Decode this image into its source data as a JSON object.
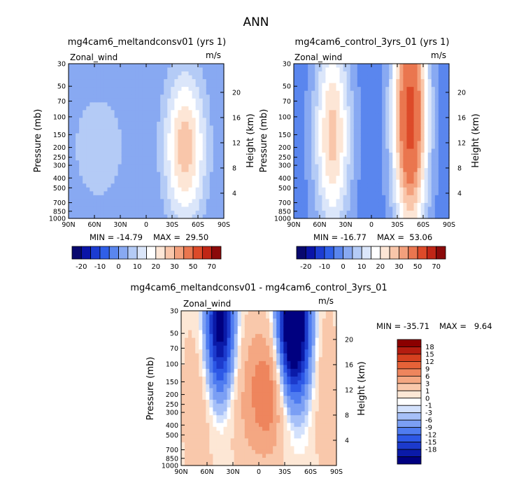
{
  "figure_title": "ANN",
  "colors": {
    "top_scale": [
      "#08086e",
      "#0a14a8",
      "#1c3cd2",
      "#2f5fe8",
      "#5a86ee",
      "#88a9f2",
      "#b4cbf6",
      "#dbe6fa",
      "#ffffff",
      "#fde6d6",
      "#f9c6aa",
      "#f3a07c",
      "#ea764f",
      "#dd4a29",
      "#c02616",
      "#8b0a0a"
    ],
    "diff_scale": [
      "#000080",
      "#0a1aa8",
      "#1c3acc",
      "#2d58e6",
      "#4f7cf0",
      "#7b9ff4",
      "#a6c0f8",
      "#d3e1fc",
      "#ffffff",
      "#fde7d5",
      "#f9c8ab",
      "#f4a782",
      "#ee855d",
      "#e66238",
      "#d5401f",
      "#b41c10",
      "#8b0000"
    ]
  },
  "chart_data": [
    {
      "type": "contour",
      "title": "mg4cam6_meltandconsv01 (yrs 1)",
      "left_label": "Zonal_wind",
      "right_label": "m/s",
      "ylabel": "Pressure (mb)",
      "ylabel_right": "Height (km)",
      "x_ticks": [
        "90N",
        "60N",
        "30N",
        "0",
        "30S",
        "60S",
        "90S"
      ],
      "x_values": [
        90,
        60,
        30,
        0,
        -30,
        -60,
        -90
      ],
      "y_ticks": [
        "30",
        "50",
        "70",
        "100",
        "150",
        "200",
        "250",
        "300",
        "400",
        "500",
        "700",
        "850",
        "1000"
      ],
      "y_values": [
        30,
        50,
        70,
        100,
        150,
        200,
        250,
        300,
        400,
        500,
        700,
        850,
        1000
      ],
      "height_ticks": [
        "20",
        "16",
        "12",
        "8",
        "4"
      ],
      "height_values": [
        20,
        16,
        12,
        8,
        4
      ],
      "ylim": [
        1000,
        30
      ],
      "xlim": [
        90,
        -90
      ],
      "min_label": "MIN = -14.79",
      "max_label": "MAX =  29.50",
      "colorbar_labels": [
        "-20",
        "-10",
        "0",
        "10",
        "20",
        "30",
        "50",
        "70"
      ],
      "jets": [
        {
          "lat": 55,
          "p": 200,
          "amp": 10,
          "sx": 22,
          "sp": 0.9
        },
        {
          "lat": -45,
          "p": 200,
          "amp": 28,
          "sx": 17,
          "sp": 1.2
        }
      ],
      "baseline": -5
    },
    {
      "type": "contour",
      "title": "mg4cam6_control_3yrs_01 (yrs 1)",
      "left_label": "Zonal_wind",
      "right_label": "m/s",
      "ylabel": "Pressure (mb)",
      "ylabel_right": "Height (km)",
      "x_ticks": [
        "90N",
        "60N",
        "30N",
        "0",
        "30S",
        "60S",
        "90S"
      ],
      "x_values": [
        90,
        60,
        30,
        0,
        -30,
        -60,
        -90
      ],
      "y_ticks": [
        "30",
        "50",
        "70",
        "100",
        "150",
        "200",
        "250",
        "300",
        "400",
        "500",
        "700",
        "850",
        "1000"
      ],
      "y_values": [
        30,
        50,
        70,
        100,
        150,
        200,
        250,
        300,
        400,
        500,
        700,
        850,
        1000
      ],
      "height_ticks": [
        "20",
        "16",
        "12",
        "8",
        "4"
      ],
      "height_values": [
        20,
        16,
        12,
        8,
        4
      ],
      "ylim": [
        1000,
        30
      ],
      "xlim": [
        90,
        -90
      ],
      "min_label": "MIN = -16.77",
      "max_label": "MAX =  53.06",
      "colorbar_labels": [
        "-20",
        "-10",
        "0",
        "10",
        "20",
        "30",
        "50",
        "70"
      ],
      "jets": [
        {
          "lat": 45,
          "p": 150,
          "amp": 30,
          "sx": 15,
          "sp": 1.6
        },
        {
          "lat": -45,
          "p": 100,
          "amp": 52,
          "sx": 14,
          "sp": 1.9
        }
      ],
      "baseline": -8
    },
    {
      "type": "contour",
      "title": "mg4cam6_meltandconsv01 - mg4cam6_control_3yrs_01",
      "left_label": "Zonal_wind",
      "right_label": "m/s",
      "ylabel": "Pressure (mb)",
      "ylabel_right": "Height (km)",
      "x_ticks": [
        "90N",
        "60N",
        "30N",
        "0",
        "30S",
        "60S",
        "90S"
      ],
      "x_values": [
        90,
        60,
        30,
        0,
        -30,
        -60,
        -90
      ],
      "y_ticks": [
        "30",
        "50",
        "70",
        "100",
        "150",
        "200",
        "250",
        "300",
        "400",
        "500",
        "700",
        "850",
        "1000"
      ],
      "y_values": [
        30,
        50,
        70,
        100,
        150,
        200,
        250,
        300,
        400,
        500,
        700,
        850,
        1000
      ],
      "height_ticks": [
        "20",
        "16",
        "12",
        "8",
        "4"
      ],
      "height_values": [
        20,
        16,
        12,
        8,
        4
      ],
      "ylim": [
        1000,
        30
      ],
      "xlim": [
        90,
        -90
      ],
      "min_label": "MIN = -35.71",
      "max_label": "MAX =   9.64",
      "colorbar_labels": [
        "18",
        "15",
        "12",
        "9",
        "6",
        "3",
        "1",
        "0",
        "-1",
        "-3",
        "-6",
        "-9",
        "-12",
        "-15",
        "-18"
      ],
      "jets": [
        {
          "lat": 45,
          "p": 45,
          "amp": -22,
          "sx": 12,
          "sp": 1.1
        },
        {
          "lat": -40,
          "p": 45,
          "amp": -30,
          "sx": 13,
          "sp": 1.1
        },
        {
          "lat": 5,
          "p": 200,
          "amp": 6,
          "sx": 22,
          "sp": 1.3
        },
        {
          "lat": -15,
          "p": 180,
          "amp": 6,
          "sx": 14,
          "sp": 1.0
        },
        {
          "lat": 70,
          "p": 250,
          "amp": 4,
          "sx": 14,
          "sp": 1.6
        },
        {
          "lat": -78,
          "p": 200,
          "amp": 4,
          "sx": 10,
          "sp": 1.6
        }
      ],
      "baseline": 1.5
    }
  ]
}
